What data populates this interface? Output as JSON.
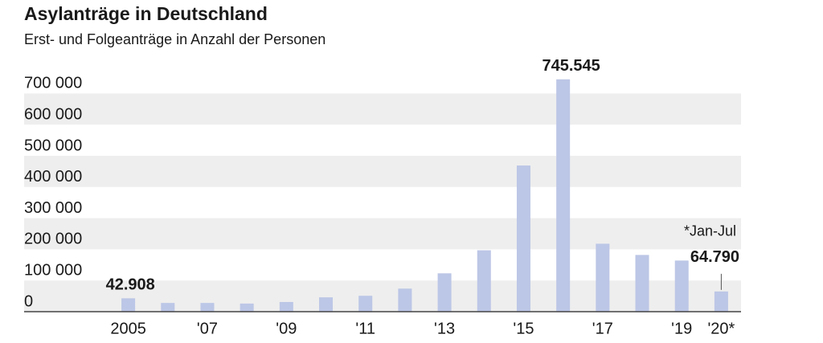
{
  "chart_data": {
    "type": "bar",
    "title": "Asylanträge in Deutschland",
    "subtitle": "Erst- und Folgeanträge in Anzahl der Personen",
    "categories": [
      "2005",
      null,
      "'07",
      null,
      "'09",
      null,
      "'11",
      null,
      "'13",
      null,
      "'15",
      null,
      "'17",
      null,
      "'19",
      "'20*"
    ],
    "values": [
      42908,
      28000,
      28000,
      26000,
      31000,
      46000,
      51000,
      74000,
      123000,
      197000,
      469000,
      745545,
      218000,
      182000,
      164000,
      64790
    ],
    "value_labels": [
      "42.908",
      null,
      null,
      null,
      null,
      null,
      null,
      null,
      null,
      null,
      null,
      "745.545",
      null,
      null,
      null,
      "64.790"
    ],
    "annotation": "*Jan-Jul",
    "color": "#bcc6e6",
    "ylim": [
      0,
      750000
    ],
    "yticks": [
      0,
      {
        "value": 100000,
        "label": "100 000"
      },
      {
        "value": 200000,
        "label": "200 000"
      },
      {
        "value": 300000,
        "label": "300 000"
      },
      {
        "value": 400000,
        "label": "400 000"
      },
      {
        "value": 500000,
        "label": "500 000"
      },
      {
        "value": 600000,
        "label": "600 000"
      },
      {
        "value": 700000,
        "label": "700 000"
      }
    ],
    "grid": true
  }
}
